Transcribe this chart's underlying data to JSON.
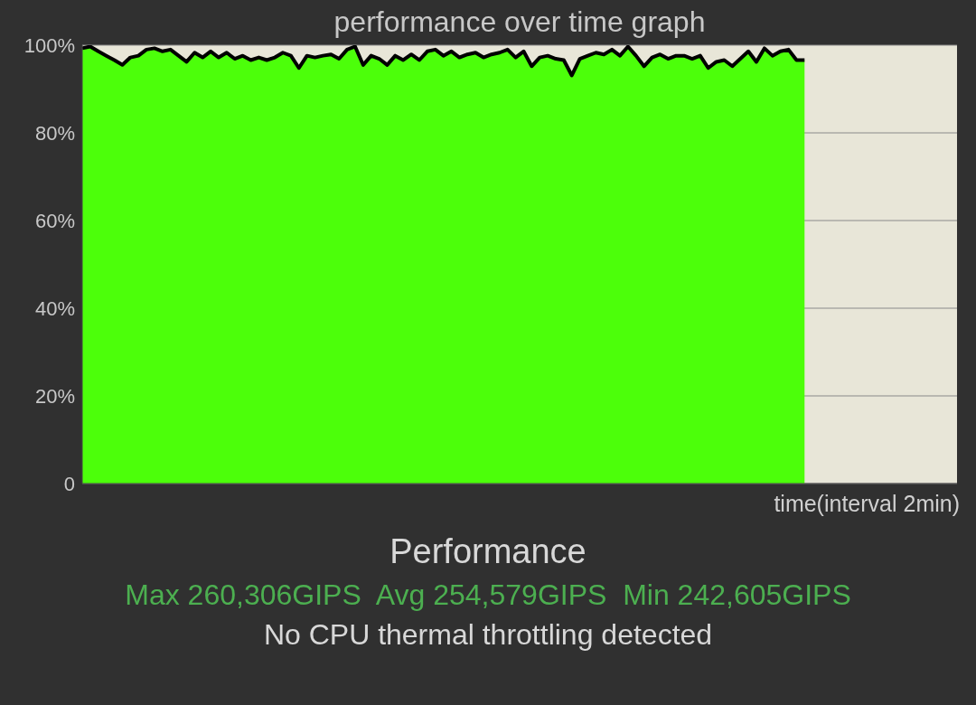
{
  "chart_data": {
    "type": "area",
    "title": "performance over time graph",
    "xlabel": "time(interval 2min)",
    "categories": [
      null,
      null,
      null,
      null,
      null,
      null,
      null,
      null,
      null,
      null,
      null,
      null,
      null,
      null,
      null,
      null,
      null,
      null,
      null,
      null,
      null,
      null,
      null,
      null,
      null,
      null,
      null,
      null,
      null,
      null,
      null,
      null,
      null,
      null,
      null,
      null,
      null,
      null,
      null,
      null,
      null,
      null,
      null,
      null,
      null,
      null,
      null,
      null,
      null,
      null,
      null,
      null,
      null,
      null,
      null,
      null,
      null,
      null,
      null,
      null,
      null,
      null,
      null,
      null,
      null,
      null,
      null,
      null,
      null,
      null,
      null,
      null,
      null,
      null,
      null,
      null,
      null,
      null,
      null,
      null,
      null,
      null,
      null,
      null,
      null,
      null,
      null,
      null,
      null,
      null,
      null,
      null,
      null,
      null,
      null,
      null,
      null,
      null,
      null,
      null,
      null,
      null,
      null,
      null,
      null,
      null,
      null,
      null,
      null,
      null
    ],
    "values": [
      99.3,
      99.7,
      98.6,
      97.6,
      96.6,
      95.5,
      97.2,
      97.6,
      99.0,
      99.3,
      98.6,
      99.0,
      97.6,
      96.2,
      98.3,
      97.2,
      98.6,
      97.2,
      98.3,
      96.9,
      97.6,
      96.6,
      97.2,
      96.6,
      97.2,
      98.3,
      97.6,
      94.8,
      97.6,
      97.2,
      97.6,
      97.9,
      96.9,
      99.0,
      99.7,
      95.5,
      97.6,
      96.9,
      95.5,
      97.6,
      96.6,
      97.9,
      96.6,
      98.6,
      99.0,
      97.6,
      98.6,
      97.2,
      97.9,
      98.3,
      97.2,
      97.9,
      98.3,
      99.0,
      97.2,
      98.6,
      95.2,
      97.2,
      97.6,
      96.9,
      96.6,
      93.1,
      96.9,
      97.6,
      98.3,
      97.9,
      99.0,
      97.6,
      99.7,
      97.6,
      95.2,
      97.2,
      97.9,
      96.9,
      97.6,
      97.6,
      96.9,
      97.6,
      94.8,
      96.2,
      96.6,
      95.2,
      96.9,
      98.6,
      96.2,
      99.3,
      97.6,
      98.6,
      99.0,
      96.6,
      96.6,
      null,
      null,
      null,
      null,
      null,
      null,
      null,
      null,
      null,
      null,
      null,
      null,
      null,
      null,
      null,
      null,
      null,
      null,
      null
    ],
    "color": "#4cff0a",
    "ylim": [
      0,
      100
    ],
    "yticks": [
      {
        "value": 0,
        "label": "0"
      },
      {
        "value": 20,
        "label": "20%"
      },
      {
        "value": 40,
        "label": "40%"
      },
      {
        "value": 60,
        "label": "60%"
      },
      {
        "value": 80,
        "label": "80%"
      },
      {
        "value": 100,
        "label": "100%"
      }
    ],
    "grid": "y",
    "annotations": [
      "Performance",
      "Max 260,306GIPS  Avg 254,579GIPS  Min 242,605GIPS",
      "No CPU thermal throttling detected"
    ]
  }
}
